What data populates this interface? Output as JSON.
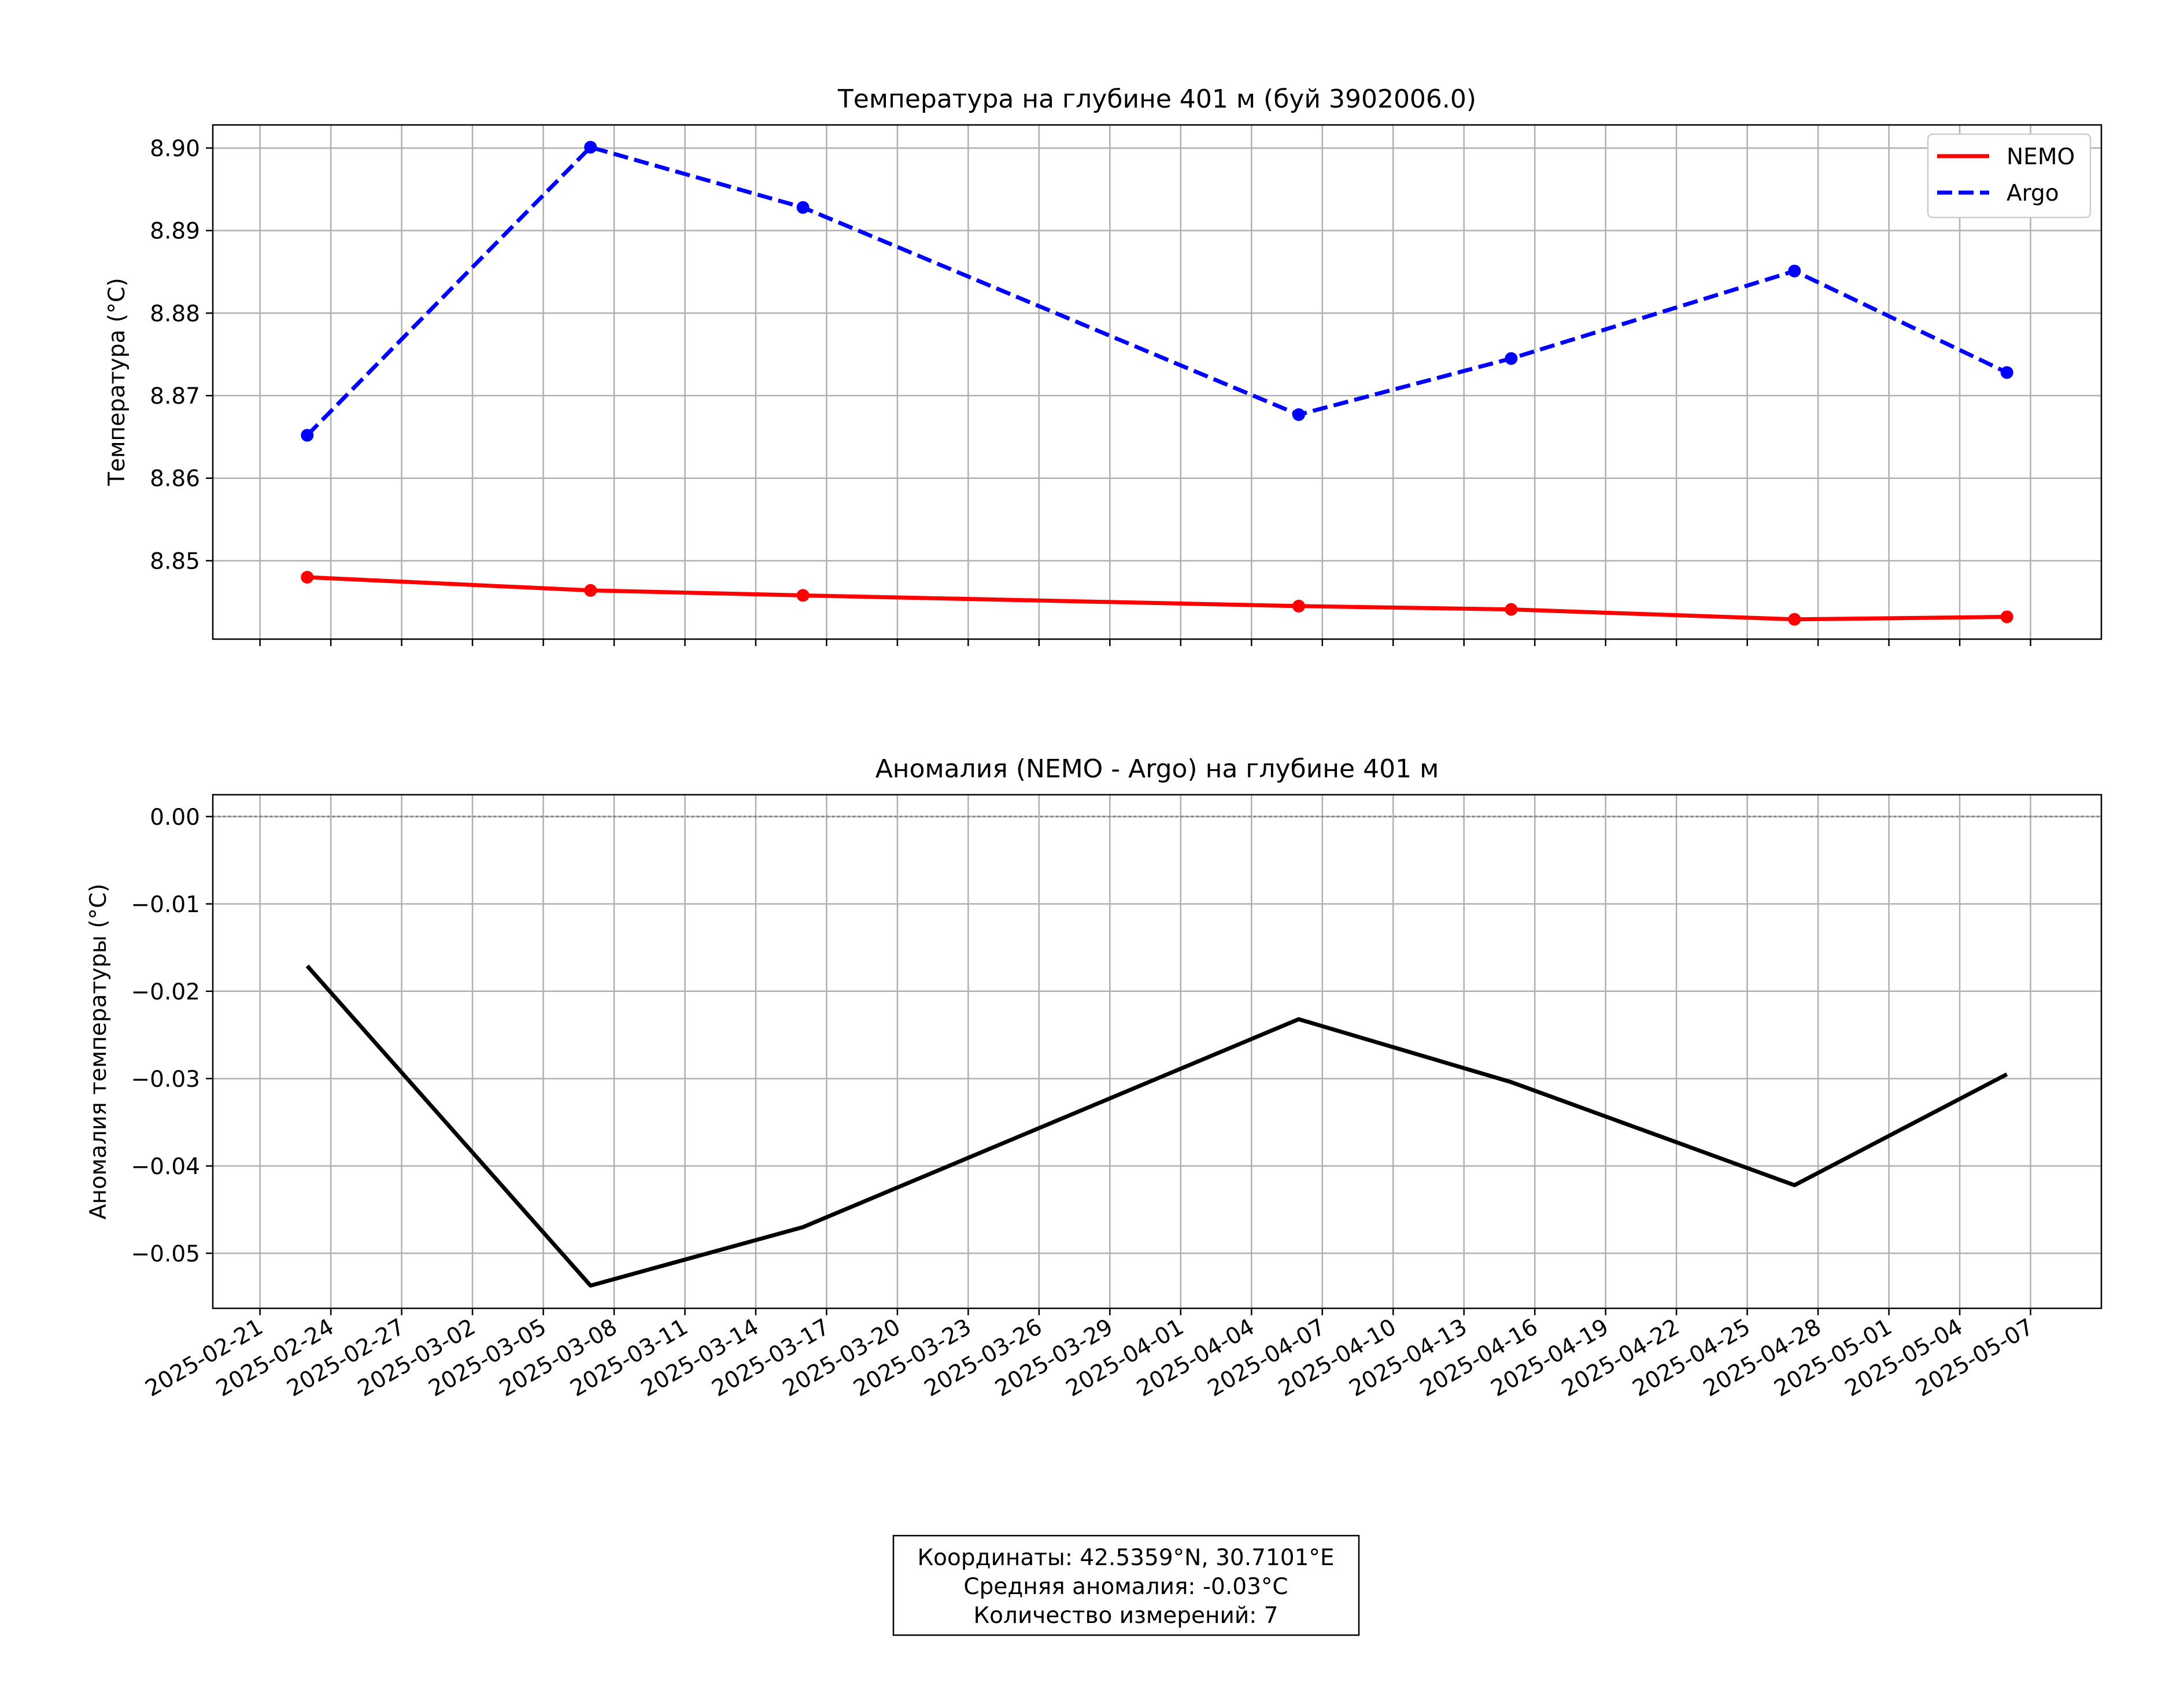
{
  "chart_data": [
    {
      "type": "line",
      "title": "Температура на глубине 401 м (буй 3902006.0)",
      "xlabel": "",
      "ylabel": "Температура (°C)",
      "x": [
        "2025-02-23",
        "2025-03-07",
        "2025-03-16",
        "2025-04-06",
        "2025-04-15",
        "2025-04-27",
        "2025-05-06"
      ],
      "series": [
        {
          "name": "NEMO",
          "color": "#ff0000",
          "style": "solid",
          "marker": "circle",
          "values": [
            8.848,
            8.8464,
            8.8458,
            8.8445,
            8.8441,
            8.8429,
            8.8432
          ]
        },
        {
          "name": "Argo",
          "color": "#0000ff",
          "style": "dashed",
          "marker": "circle",
          "values": [
            8.8652,
            8.9001,
            8.8928,
            8.8677,
            8.8745,
            8.8851,
            8.8728
          ]
        }
      ],
      "ylim": [
        8.8405,
        8.9028
      ],
      "yticks": [
        "8.85",
        "8.86",
        "8.87",
        "8.88",
        "8.89",
        "8.90"
      ],
      "ytick_values": [
        8.85,
        8.86,
        8.87,
        8.88,
        8.89,
        8.9
      ],
      "xlim": [
        "2025-02-19",
        "2025-05-10"
      ],
      "grid": true,
      "legend": "top-right"
    },
    {
      "type": "line",
      "title": "Аномалия (NEMO - Argo) на глубине 401 м",
      "xlabel": "",
      "ylabel": "Аномалия температуры (°C)",
      "x": [
        "2025-02-23",
        "2025-03-07",
        "2025-03-16",
        "2025-04-06",
        "2025-04-15",
        "2025-04-27",
        "2025-05-06"
      ],
      "series": [
        {
          "color": "#000000",
          "style": "solid",
          "values": [
            -0.0171,
            -0.0537,
            -0.047,
            -0.0232,
            -0.0304,
            -0.0422,
            -0.0295
          ]
        }
      ],
      "reference_line": {
        "value": 0.0,
        "color": "#808080",
        "style": "dotted"
      },
      "ylim": [
        -0.0563,
        0.0025
      ],
      "yticks": [
        "0.00",
        "−0.01",
        "−0.02",
        "−0.03",
        "−0.04",
        "−0.05"
      ],
      "ytick_values": [
        0.0,
        -0.01,
        -0.02,
        -0.03,
        -0.04,
        -0.05
      ],
      "xlim": [
        "2025-02-19",
        "2025-05-10"
      ],
      "grid": true
    }
  ],
  "xticks": [
    "2025-02-21",
    "2025-02-24",
    "2025-02-27",
    "2025-03-02",
    "2025-03-05",
    "2025-03-08",
    "2025-03-11",
    "2025-03-14",
    "2025-03-17",
    "2025-03-20",
    "2025-03-23",
    "2025-03-26",
    "2025-03-29",
    "2025-04-01",
    "2025-04-04",
    "2025-04-07",
    "2025-04-10",
    "2025-04-13",
    "2025-04-16",
    "2025-04-19",
    "2025-04-22",
    "2025-04-25",
    "2025-04-28",
    "2025-05-01",
    "2025-05-04",
    "2025-05-07"
  ],
  "info": {
    "line1": "Координаты: 42.5359°N, 30.7101°E",
    "line2": "Средняя аномалия: -0.03°C",
    "line3": "Количество измерений: 7"
  }
}
